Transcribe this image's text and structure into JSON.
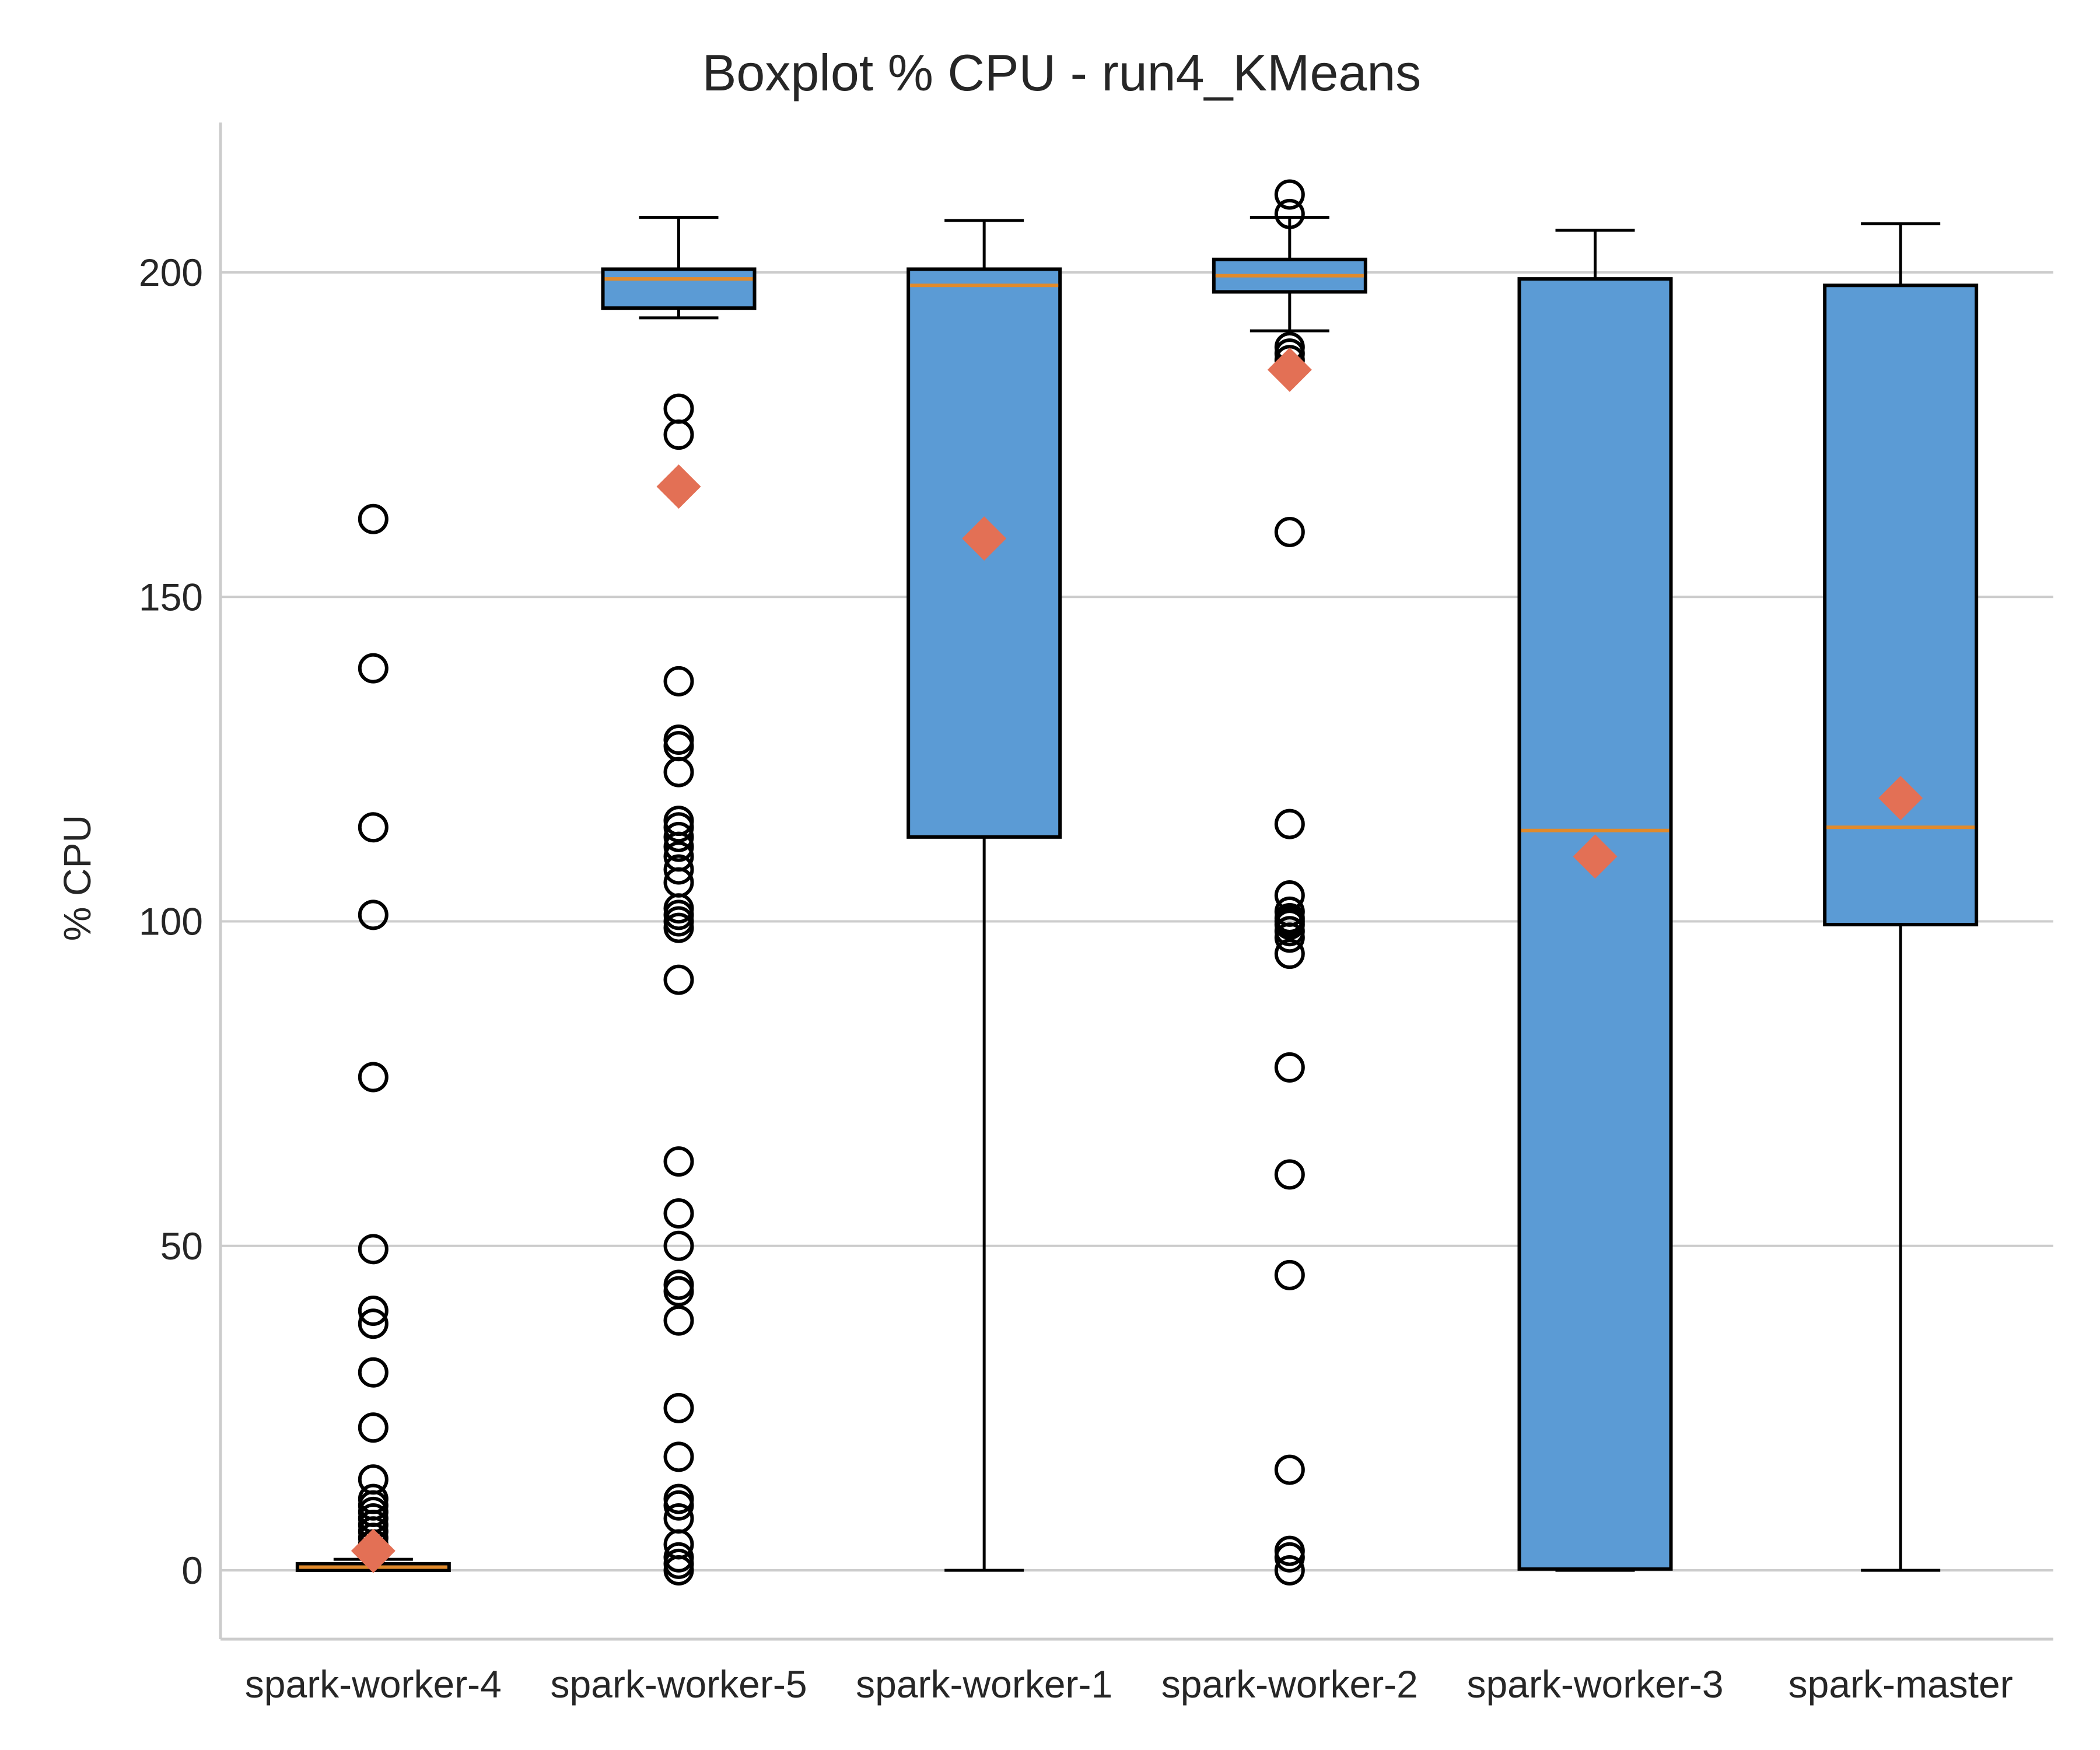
{
  "chart_data": {
    "type": "box",
    "title": "Boxplot % CPU - run4_KMeans",
    "ylabel": "% CPU",
    "xlabel": "",
    "ylim": [
      -10,
      223
    ],
    "yticks": [
      0,
      50,
      100,
      150,
      200
    ],
    "grid": "horizontal",
    "colors": {
      "box_fill": "#5b9bd5",
      "box_edge": "#000000",
      "median": "#e08a2c",
      "mean_marker": "#e37055",
      "grid": "#cccccc",
      "axis": "#cccccc"
    },
    "categories": [
      "spark-worker-4",
      "spark-worker-5",
      "spark-worker-1",
      "spark-worker-2",
      "spark-worker-3",
      "spark-master"
    ],
    "boxes": [
      {
        "name": "spark-worker-4",
        "whislo": 0,
        "q1": 0,
        "median": 0.5,
        "q3": 1,
        "whishi": 1.7,
        "mean": 3,
        "fliers": [
          162,
          139,
          114.5,
          101,
          76,
          49.5,
          40,
          38,
          30.5,
          22,
          14,
          11,
          10,
          9,
          8,
          7,
          6,
          5,
          4,
          3
        ]
      },
      {
        "name": "spark-worker-5",
        "whislo": 193,
        "q1": 194.5,
        "median": 199,
        "q3": 200.5,
        "whishi": 208.5,
        "mean": 167,
        "fliers": [
          179,
          175,
          137,
          128,
          127,
          123,
          115.5,
          114.5,
          113,
          111.5,
          110,
          108,
          106,
          102,
          101,
          100,
          99,
          91,
          63,
          55,
          50,
          44,
          43,
          38.5,
          25,
          17.5,
          11,
          10,
          8,
          4,
          2,
          1,
          0
        ]
      },
      {
        "name": "spark-worker-1",
        "whislo": 0,
        "q1": 113,
        "median": 198,
        "q3": 200.5,
        "whishi": 208,
        "mean": 159,
        "fliers": []
      },
      {
        "name": "spark-worker-2",
        "whislo": 191,
        "q1": 197,
        "median": 199.5,
        "q3": 202,
        "whishi": 208.5,
        "mean": 185,
        "fliers": [
          212,
          209,
          188.5,
          187.5,
          186.5,
          160,
          115,
          104,
          101.5,
          100.5,
          100,
          99.5,
          98.5,
          97.5,
          95,
          77.5,
          61,
          45.5,
          15.5,
          3,
          2,
          0
        ]
      },
      {
        "name": "spark-worker-3",
        "whislo": 0,
        "q1": 0.2,
        "median": 114,
        "q3": 199,
        "whishi": 206.5,
        "mean": 110,
        "fliers": []
      },
      {
        "name": "spark-master",
        "whislo": 0,
        "q1": 99.5,
        "median": 114.5,
        "q3": 198,
        "whishi": 207.5,
        "mean": 119,
        "fliers": []
      }
    ]
  }
}
